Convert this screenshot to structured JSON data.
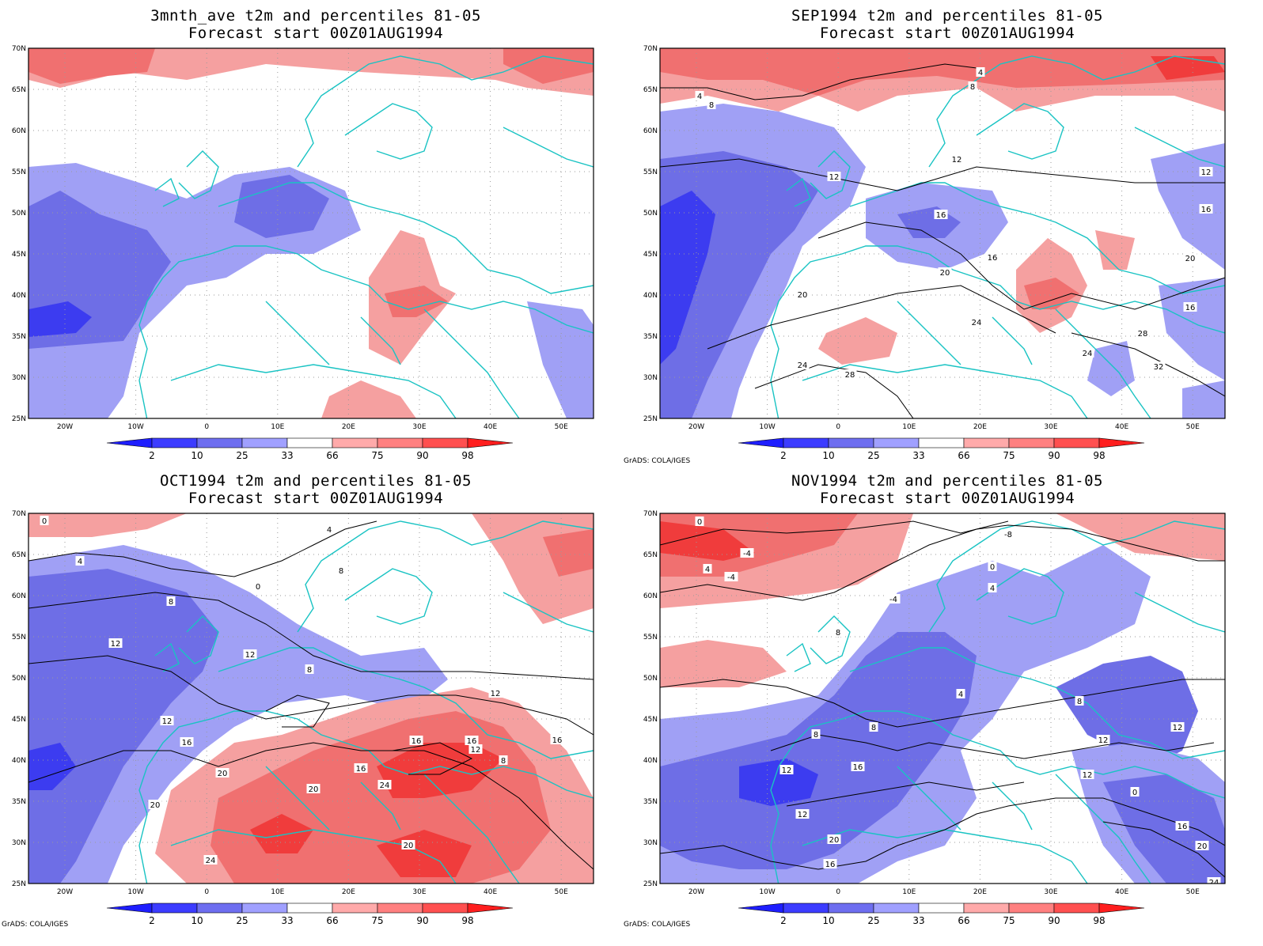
{
  "panels": [
    {
      "title_line1": "3mnth_ave t2m and percentiles 81-05",
      "title_line2": "Forecast start 00Z01AUG1994",
      "credit": ""
    },
    {
      "title_line1": "SEP1994 t2m and percentiles 81-05",
      "title_line2": "Forecast start 00Z01AUG1994",
      "credit": "GrADS: COLA/IGES"
    },
    {
      "title_line1": "OCT1994 t2m and percentiles 81-05",
      "title_line2": "Forecast start 00Z01AUG1994",
      "credit": "GrADS: COLA/IGES"
    },
    {
      "title_line1": "NOV1994 t2m and percentiles 81-05",
      "title_line2": "Forecast start 00Z01AUG1994",
      "credit": "GrADS: COLA/IGES"
    }
  ],
  "lat_labels": [
    "70N",
    "65N",
    "60N",
    "55N",
    "50N",
    "45N",
    "40N",
    "35N",
    "30N",
    "25N"
  ],
  "lon_labels": [
    "20W",
    "10W",
    "0",
    "10E",
    "20E",
    "30E",
    "40E",
    "50E"
  ],
  "colorbar": {
    "labels": [
      "2",
      "10",
      "25",
      "33",
      "66",
      "75",
      "90",
      "98"
    ],
    "colors": [
      "#1e1eff",
      "#3c3cff",
      "#6e6ef0",
      "#a0a0ff",
      "#ffffff",
      "#ffaaaa",
      "#ff8080",
      "#ff5050",
      "#ff1e1e"
    ]
  },
  "map_colors": {
    "coast": "#19c3c3",
    "contour": "#000000",
    "blue_light": "#a0a0f5",
    "blue_mid": "#6e6ee6",
    "blue_dark": "#3c3cf0",
    "red_light": "#f5a0a0",
    "red_mid": "#f07070",
    "red_dark": "#f03c3c"
  },
  "contour_labels": {
    "p2": [
      "4",
      "8",
      "12",
      "12",
      "12",
      "16",
      "16",
      "16",
      "16",
      "20",
      "20",
      "20",
      "24",
      "24",
      "24",
      "28",
      "28",
      "32",
      "4",
      "8"
    ],
    "p3": [
      "0",
      "4",
      "8",
      "8",
      "12",
      "12",
      "12",
      "16",
      "16",
      "16",
      "20",
      "20",
      "20",
      "24",
      "24",
      "20",
      "16",
      "12",
      "8",
      "0",
      "4",
      "8",
      "16",
      "12"
    ],
    "p4": [
      "0",
      "-4",
      "4",
      "-8",
      "-4",
      "0",
      "4",
      "8",
      "12",
      "12",
      "16",
      "16",
      "8",
      "12",
      "12",
      "0",
      "4",
      "8",
      "12",
      "16",
      "20",
      "24",
      "20",
      "8",
      "-4"
    ]
  }
}
